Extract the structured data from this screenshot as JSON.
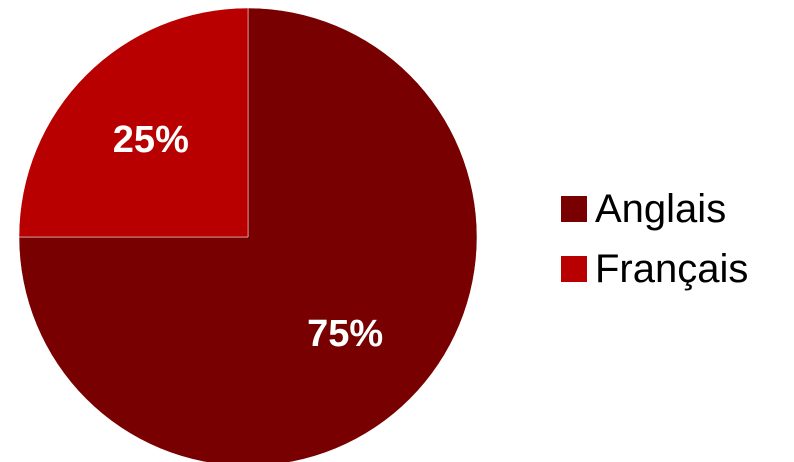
{
  "chart_data": {
    "type": "pie",
    "categories": [
      "Anglais",
      "Français"
    ],
    "values": [
      75,
      25
    ],
    "data_labels": [
      "75%",
      "25%"
    ],
    "colors": [
      "#780000",
      "#b80000"
    ],
    "start_angle_deg": 0,
    "direction": "clockwise",
    "legend_position": "right"
  }
}
